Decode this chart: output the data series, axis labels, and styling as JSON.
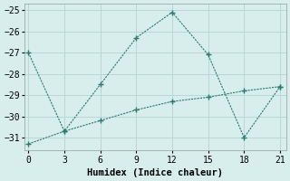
{
  "line1_x": [
    0,
    3,
    6,
    9,
    12,
    15,
    18,
    21
  ],
  "line1_y": [
    -27.0,
    -30.7,
    -28.5,
    -26.3,
    -25.1,
    -27.1,
    -31.0,
    -28.6
  ],
  "line2_x": [
    0,
    3,
    6,
    9,
    12,
    15,
    18,
    21
  ],
  "line2_y": [
    -31.3,
    -30.7,
    -30.2,
    -29.7,
    -29.3,
    -29.1,
    -28.8,
    -28.6
  ],
  "color": "#2a7a6e",
  "xlabel": "Humidex (Indice chaleur)",
  "xticks": [
    0,
    3,
    6,
    9,
    12,
    15,
    18,
    21
  ],
  "yticks": [
    -25,
    -26,
    -27,
    -28,
    -29,
    -30,
    -31
  ],
  "ylim": [
    -31.6,
    -24.7
  ],
  "xlim": [
    -0.3,
    21.5
  ],
  "bg_color": "#d8eeed",
  "grid_color": "#b8d8d4",
  "font_family": "monospace",
  "xlabel_fontsize": 7.5,
  "tick_fontsize": 7
}
